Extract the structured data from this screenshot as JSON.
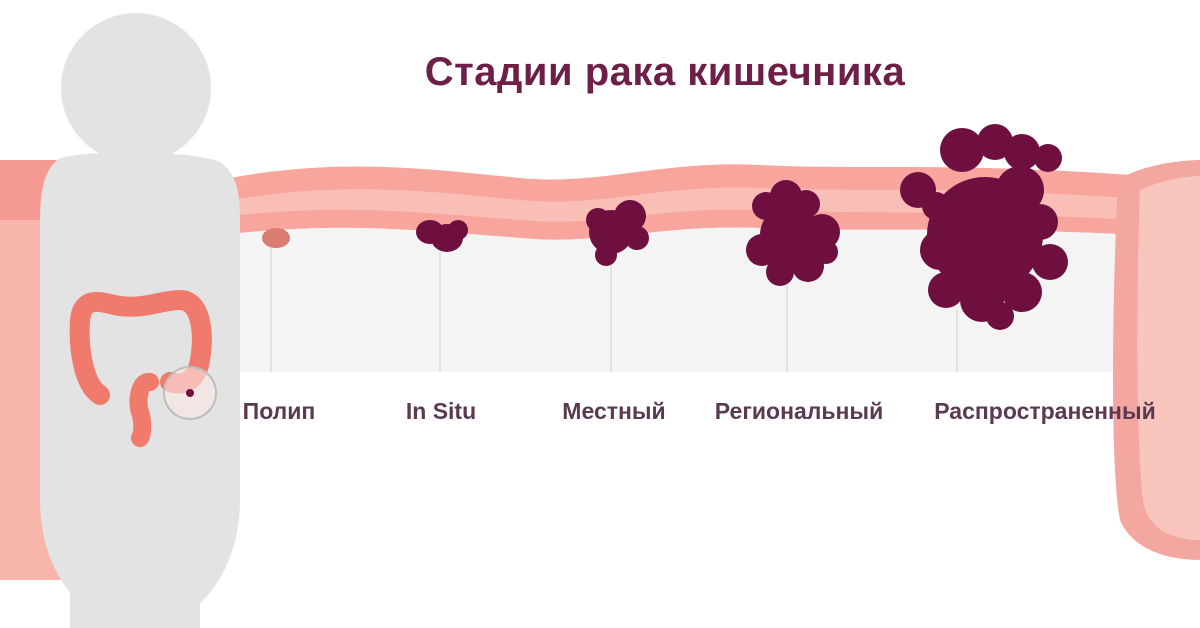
{
  "title": "Стадии рака кишечника",
  "stages": [
    {
      "label": "Полип"
    },
    {
      "label": "In Situ"
    },
    {
      "label": "Местный"
    },
    {
      "label": "Региональный"
    },
    {
      "label": "Распространенный"
    }
  ],
  "colors": {
    "title": "#6d1f47",
    "tumor": "#6e0f3f",
    "intestine_outer": "#f4a7a0",
    "intestine_inner": "#f7c3b9",
    "lumen": "#f3f3f3",
    "body": "#e3e3e3",
    "colon_icon": "#f07a6c"
  },
  "icons": [
    "human-silhouette",
    "colon-icon",
    "magnifier-circle"
  ]
}
